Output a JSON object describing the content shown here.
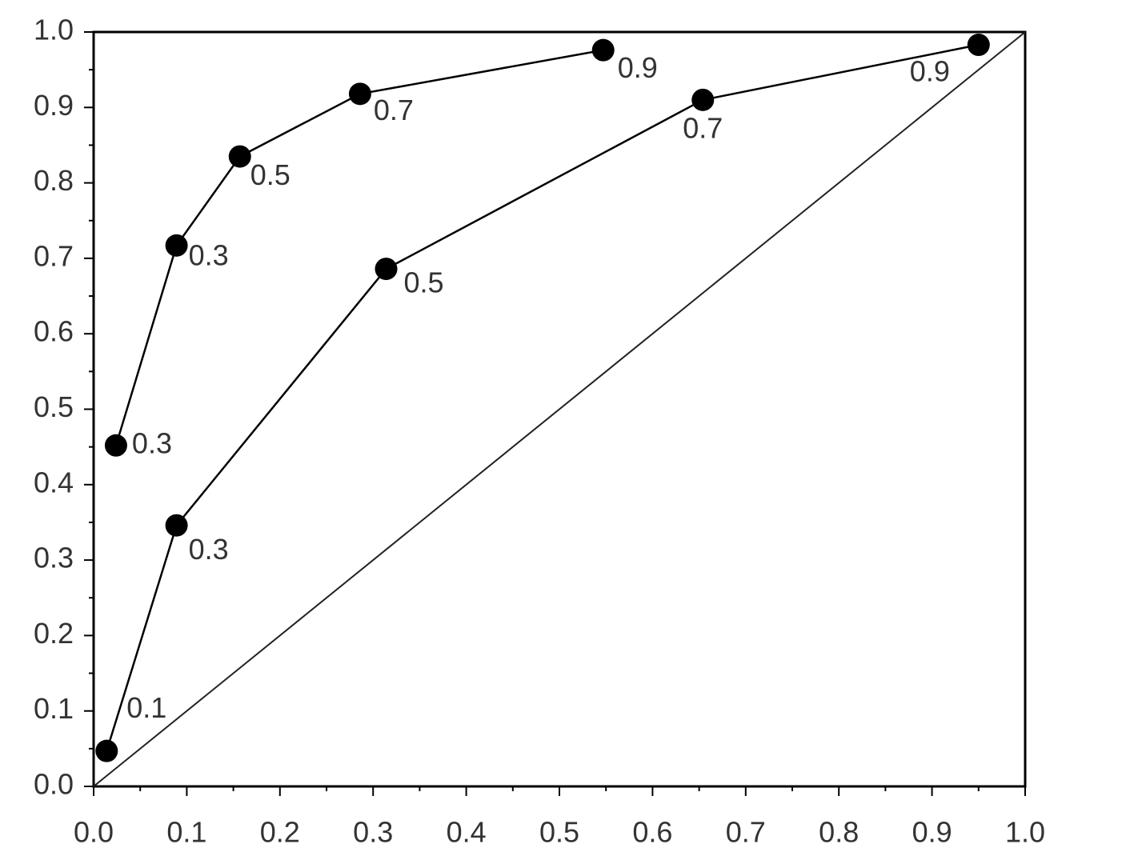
{
  "chart_data": {
    "type": "line",
    "series": [
      {
        "color": "#000000",
        "x": [
          0.024,
          0.089,
          0.157,
          0.286,
          0.547
        ],
        "values": [
          0.452,
          0.717,
          0.835,
          0.918,
          0.976
        ],
        "point_labels": [
          "0.3",
          "0.3",
          "0.5",
          "0.7",
          "0.9"
        ]
      },
      {
        "color": "#000000",
        "x": [
          0.014,
          0.089,
          0.314,
          0.654,
          0.95
        ],
        "values": [
          0.047,
          0.346,
          0.686,
          0.91,
          0.983
        ],
        "point_labels": [
          "0.1",
          "0.3",
          "0.5",
          "0.7",
          "0.9"
        ]
      }
    ],
    "diagonal": true,
    "xlim": [
      0,
      1
    ],
    "ylim": [
      0,
      1
    ],
    "xticks": [
      {
        "value": 0,
        "label": "0.0"
      },
      0.1,
      0.2,
      0.3,
      0.4,
      0.5,
      0.6,
      0.7,
      0.8,
      0.9,
      {
        "value": 1,
        "label": "1.0"
      }
    ],
    "yticks": [
      {
        "value": 0,
        "label": "0.0"
      },
      0.1,
      0.2,
      0.3,
      0.4,
      0.5,
      0.6,
      0.7,
      0.8,
      0.9,
      {
        "value": 1,
        "label": "1.0"
      }
    ],
    "xminorticks": [
      0.05,
      0.15,
      0.25,
      0.35,
      0.45,
      0.55,
      0.65,
      0.75,
      0.85,
      0.95
    ],
    "yminorticks": [
      0.05,
      0.15,
      0.25,
      0.35,
      0.45,
      0.55,
      0.65,
      0.75,
      0.85,
      0.95
    ],
    "grid": false
  }
}
